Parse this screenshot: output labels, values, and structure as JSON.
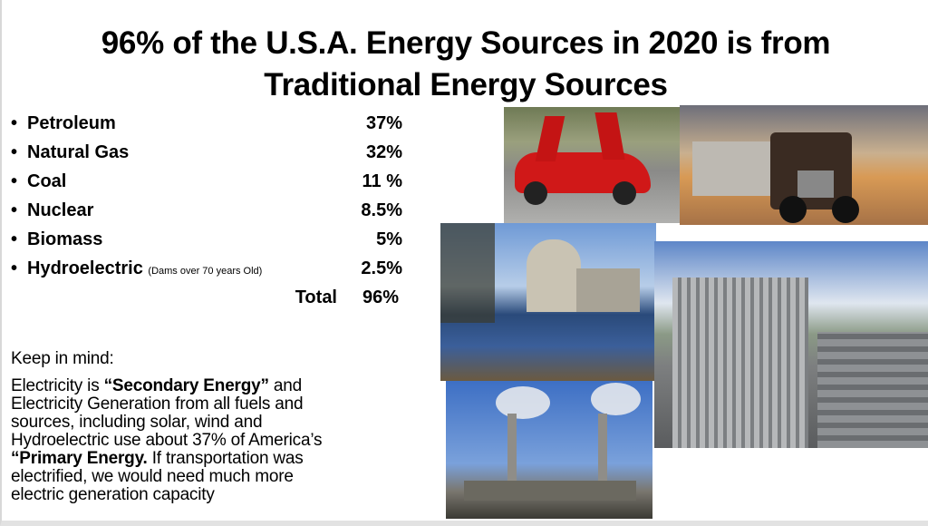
{
  "title": {
    "line1": "96% of the U.S.A. Energy Sources in 2020 is from",
    "line2": "Traditional Energy Sources"
  },
  "sources": [
    {
      "name": "Petroleum",
      "note": "",
      "percent": "37%"
    },
    {
      "name": "Natural Gas",
      "note": "",
      "percent": "32%"
    },
    {
      "name": "Coal",
      "note": "",
      "percent": "11 %"
    },
    {
      "name": "Nuclear",
      "note": "",
      "percent": "8.5%"
    },
    {
      "name": "Biomass",
      "note": "",
      "percent": "5%"
    },
    {
      "name": "Hydroelectric",
      "note": "(Dams over 70 years Old)",
      "percent": "2.5%"
    }
  ],
  "total": {
    "label": "Total",
    "percent": "96%"
  },
  "bullet": "•",
  "note": {
    "heading": "Keep in mind:",
    "l1a": "Electricity is ",
    "l1b": "“Secondary Energy”",
    "l1c": " and",
    "l2": "Electricity Generation from all fuels and",
    "l3": "sources, including solar, wind and",
    "l4": "Hydroelectric use about 37% of America’s",
    "l5a": "“Primary Energy.",
    "l5b": " If transportation was",
    "l6": "electrified, we would need much more",
    "l7": "electric generation capacity"
  },
  "photos": [
    "red-sports-car",
    "semi-truck",
    "nuclear-plant",
    "refinery",
    "coal-power-plant"
  ]
}
